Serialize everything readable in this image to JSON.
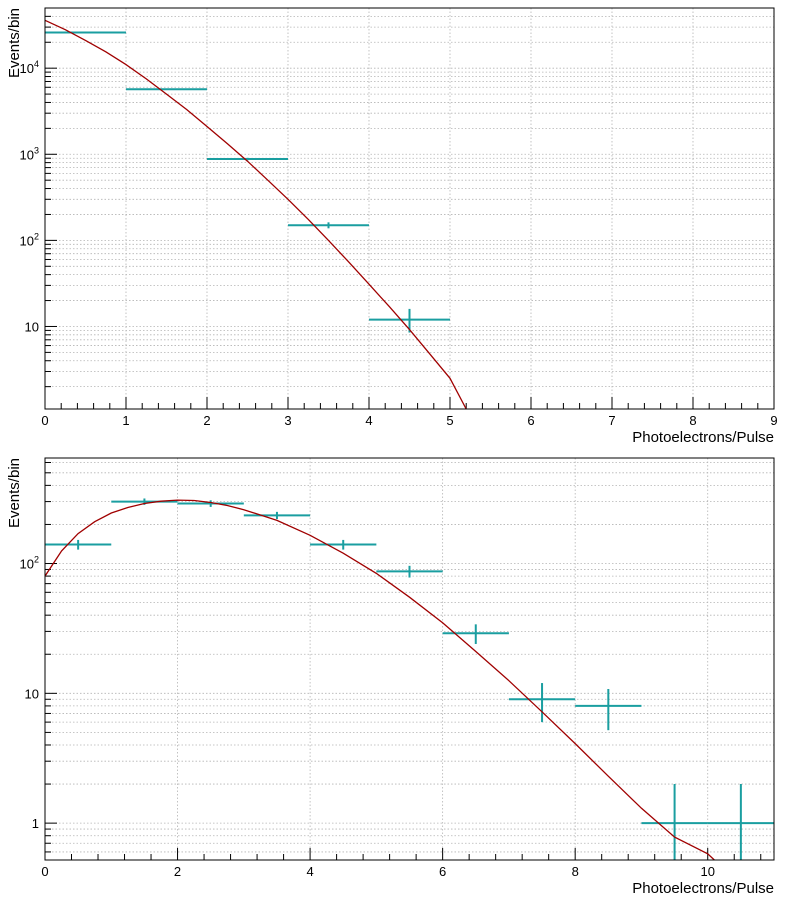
{
  "chart_data": [
    {
      "type": "histogram",
      "yscale": "log",
      "xlabel": "Photoelectrons/Pulse",
      "ylabel": "Events/bin",
      "xlim": [
        0,
        9
      ],
      "ylim": [
        1.1,
        50000
      ],
      "x_ticks": [
        0,
        1,
        2,
        3,
        4,
        5,
        6,
        7,
        8,
        9
      ],
      "y_ticks": [
        {
          "value": 10,
          "base": "10",
          "exp": ""
        },
        {
          "value": 100,
          "base": "10",
          "exp": "2"
        },
        {
          "value": 1000,
          "base": "10",
          "exp": "3"
        },
        {
          "value": 10000,
          "base": "10",
          "exp": "4"
        }
      ],
      "bins": [
        {
          "lo": 0,
          "hi": 1,
          "value": 26000,
          "err_lo": 25840,
          "err_hi": 26160
        },
        {
          "lo": 1,
          "hi": 2,
          "value": 5700,
          "err_lo": 5625,
          "err_hi": 5775
        },
        {
          "lo": 2,
          "hi": 3,
          "value": 880,
          "err_lo": 850,
          "err_hi": 910
        },
        {
          "lo": 3,
          "hi": 4,
          "value": 150,
          "err_lo": 138,
          "err_hi": 162
        },
        {
          "lo": 4,
          "hi": 5,
          "value": 12,
          "err_lo": 8.5,
          "err_hi": 16
        }
      ],
      "fit": {
        "x": [
          0.0,
          0.25,
          0.5,
          0.75,
          1.0,
          1.25,
          1.5,
          1.75,
          2.0,
          2.25,
          2.5,
          2.75,
          3.0,
          3.25,
          3.5,
          3.75,
          4.0,
          4.25,
          4.5,
          4.75,
          5.0,
          5.2
        ],
        "y": [
          36000,
          28000,
          21000,
          15500,
          11000,
          7500,
          5000,
          3300,
          2100,
          1330,
          830,
          500,
          300,
          175,
          100,
          56,
          31,
          17,
          9.2,
          4.8,
          2.5,
          1.1
        ]
      }
    },
    {
      "type": "histogram",
      "yscale": "log",
      "xlabel": "Photoelectrons/Pulse",
      "ylabel": "Events/bin",
      "xlim": [
        0,
        11
      ],
      "ylim": [
        0.52,
        650
      ],
      "x_ticks": [
        0,
        2,
        4,
        6,
        8,
        10
      ],
      "y_ticks": [
        {
          "value": 1,
          "base": "1",
          "exp": ""
        },
        {
          "value": 10,
          "base": "10",
          "exp": ""
        },
        {
          "value": 100,
          "base": "10",
          "exp": "2"
        }
      ],
      "bins": [
        {
          "lo": 0,
          "hi": 1,
          "value": 140,
          "err_lo": 128,
          "err_hi": 152
        },
        {
          "lo": 1,
          "hi": 2,
          "value": 300,
          "err_lo": 283,
          "err_hi": 317
        },
        {
          "lo": 2,
          "hi": 3,
          "value": 290,
          "err_lo": 273,
          "err_hi": 307
        },
        {
          "lo": 3,
          "hi": 4,
          "value": 235,
          "err_lo": 220,
          "err_hi": 250
        },
        {
          "lo": 4,
          "hi": 5,
          "value": 140,
          "err_lo": 128,
          "err_hi": 152
        },
        {
          "lo": 5,
          "hi": 6,
          "value": 87,
          "err_lo": 78,
          "err_hi": 96
        },
        {
          "lo": 6,
          "hi": 7,
          "value": 29,
          "err_lo": 24,
          "err_hi": 34
        },
        {
          "lo": 7,
          "hi": 8,
          "value": 9,
          "err_lo": 6,
          "err_hi": 12
        },
        {
          "lo": 8,
          "hi": 9,
          "value": 8,
          "err_lo": 5.2,
          "err_hi": 10.8
        },
        {
          "lo": 9,
          "hi": 10,
          "value": 1,
          "err_lo": 0.52,
          "err_hi": 2
        },
        {
          "lo": 10,
          "hi": 11,
          "value": 1,
          "err_lo": 0.52,
          "err_hi": 2
        }
      ],
      "fit": {
        "x": [
          0.0,
          0.25,
          0.5,
          0.75,
          1.0,
          1.25,
          1.5,
          1.75,
          2.0,
          2.25,
          2.5,
          2.75,
          3.0,
          3.5,
          4.0,
          4.5,
          5.0,
          5.5,
          6.0,
          6.5,
          7.0,
          7.5,
          8.0,
          8.5,
          9.0,
          9.5,
          10.0,
          10.1
        ],
        "y": [
          80,
          125,
          170,
          210,
          245,
          270,
          290,
          302,
          308,
          306,
          295,
          280,
          260,
          215,
          165,
          120,
          84,
          55,
          35,
          21,
          12.5,
          7.2,
          4.1,
          2.3,
          1.3,
          0.78,
          0.58,
          0.52
        ]
      }
    }
  ]
}
